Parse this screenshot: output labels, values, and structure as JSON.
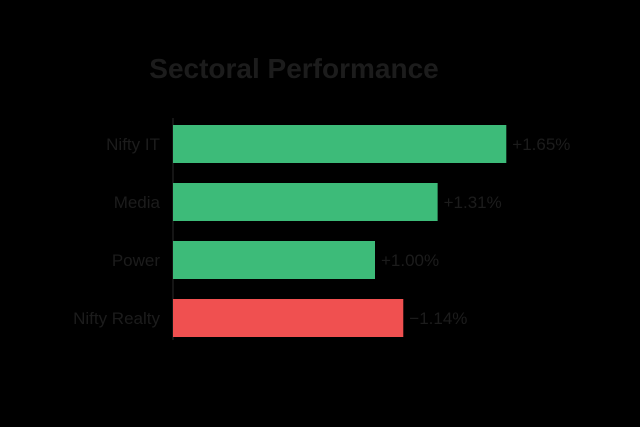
{
  "chart_data": {
    "type": "bar",
    "orientation": "horizontal",
    "title": "Sectoral Performance",
    "categories": [
      "Nifty IT",
      "Media",
      "Power",
      "Nifty Realty"
    ],
    "values": [
      1.65,
      1.31,
      1.0,
      -1.14
    ],
    "value_labels": [
      "+1.65%",
      "+1.31%",
      "+1.00%",
      "−1.14%"
    ],
    "xlabel": "",
    "ylabel": "",
    "grid": false,
    "legend": "none",
    "colors": {
      "positive": "#3dbb79",
      "negative": "#f05050",
      "text": "#1c1c1c",
      "axis": "#1c1c1c",
      "background": "#000000"
    }
  }
}
